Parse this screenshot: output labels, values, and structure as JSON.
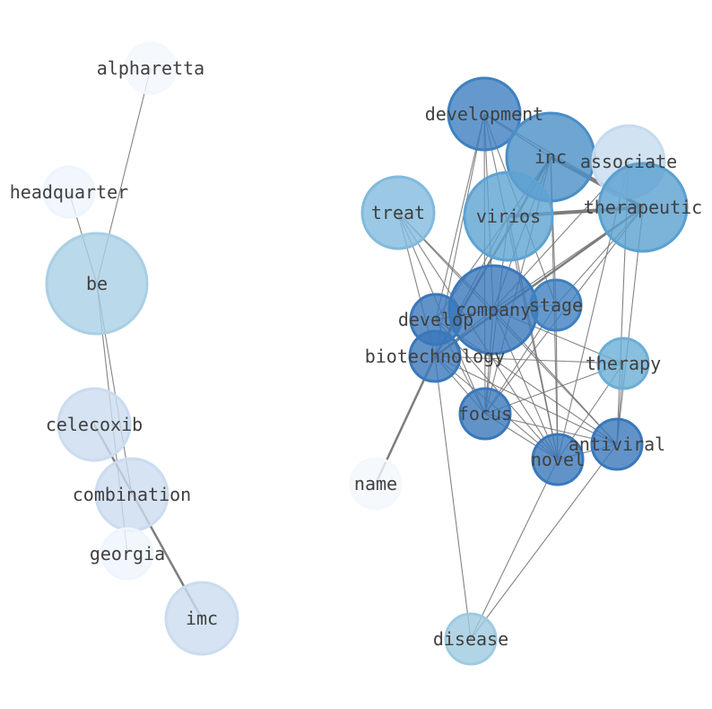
{
  "nodes": [
    {
      "id": "alpharetta",
      "color": "#f3f8fe"
    },
    {
      "id": "headquarter",
      "color": "#eef5fc"
    },
    {
      "id": "be",
      "color": "#a9cfe5"
    },
    {
      "id": "celecoxib",
      "color": "#cadcef"
    },
    {
      "id": "combination",
      "color": "#cadcef"
    },
    {
      "id": "georgia",
      "color": "#eef5fc"
    },
    {
      "id": "imc",
      "color": "#cadcef"
    },
    {
      "id": "development",
      "color": "#3f80c0"
    },
    {
      "id": "inc",
      "color": "#4a8ec6"
    },
    {
      "id": "associate",
      "color": "#c6dbef"
    },
    {
      "id": "therapeutic",
      "color": "#5aa0d0"
    },
    {
      "id": "treat",
      "color": "#82badd"
    },
    {
      "id": "virios",
      "color": "#5ea3d2"
    },
    {
      "id": "company",
      "color": "#3a78bb"
    },
    {
      "id": "stage",
      "color": "#3f80c0"
    },
    {
      "id": "develop",
      "color": "#3a78bb"
    },
    {
      "id": "biotechnology",
      "color": "#3a78bb"
    },
    {
      "id": "therapy",
      "color": "#6aaed6"
    },
    {
      "id": "focus",
      "color": "#3a78bb"
    },
    {
      "id": "antiviral",
      "color": "#3a78bb"
    },
    {
      "id": "novel",
      "color": "#3a78bb"
    },
    {
      "id": "name",
      "color": "#f3f8fe"
    },
    {
      "id": "disease",
      "color": "#9ecae1"
    }
  ],
  "edges": [
    [
      "alpharetta",
      "be",
      1
    ],
    [
      "headquarter",
      "be",
      1
    ],
    [
      "be",
      "georgia",
      1
    ],
    [
      "celecoxib",
      "imc",
      2
    ],
    [
      "be",
      "combination",
      1
    ],
    [
      "virios",
      "therapeutic",
      3
    ],
    [
      "inc",
      "therapeutic",
      3
    ],
    [
      "development",
      "inc",
      1
    ],
    [
      "development",
      "therapeutic",
      1
    ],
    [
      "inc",
      "biotechnology",
      2
    ],
    [
      "biotechnology",
      "name",
      2
    ],
    [
      "biotechnology",
      "therapeutic",
      2
    ],
    [
      "development",
      "develop",
      1
    ],
    [
      "development",
      "biotechnology",
      1
    ],
    [
      "development",
      "focus",
      1
    ],
    [
      "development",
      "stage",
      1
    ],
    [
      "development",
      "company",
      1
    ],
    [
      "development",
      "novel",
      1
    ],
    [
      "inc",
      "company",
      1
    ],
    [
      "inc",
      "focus",
      1
    ],
    [
      "inc",
      "novel",
      1
    ],
    [
      "inc",
      "develop",
      1
    ],
    [
      "inc",
      "stage",
      1
    ],
    [
      "treat",
      "company",
      1
    ],
    [
      "treat",
      "focus",
      1
    ],
    [
      "treat",
      "novel",
      1
    ],
    [
      "treat",
      "antiviral",
      1
    ],
    [
      "treat",
      "biotechnology",
      1
    ],
    [
      "associate",
      "antiviral",
      1
    ],
    [
      "associate",
      "novel",
      1
    ],
    [
      "associate",
      "company",
      1
    ],
    [
      "therapeutic",
      "stage",
      1
    ],
    [
      "therapeutic",
      "focus",
      1
    ],
    [
      "therapeutic",
      "antiviral",
      1
    ],
    [
      "therapeutic",
      "company",
      1
    ],
    [
      "company",
      "therapy",
      1
    ],
    [
      "company",
      "antiviral",
      1
    ],
    [
      "company",
      "novel",
      1
    ],
    [
      "company",
      "focus",
      1
    ],
    [
      "company",
      "develop",
      1
    ],
    [
      "company",
      "biotechnology",
      1
    ],
    [
      "company",
      "stage",
      1
    ],
    [
      "virios",
      "novel",
      1
    ],
    [
      "virios",
      "biotechnology",
      1
    ],
    [
      "virios",
      "focus",
      1
    ],
    [
      "biotechnology",
      "focus",
      1
    ],
    [
      "biotechnology",
      "novel",
      1
    ],
    [
      "biotechnology",
      "antiviral",
      1
    ],
    [
      "biotechnology",
      "therapy",
      1
    ],
    [
      "biotechnology",
      "disease",
      1
    ],
    [
      "develop",
      "novel",
      1
    ],
    [
      "develop",
      "antiviral",
      1
    ],
    [
      "develop",
      "focus",
      1
    ],
    [
      "stage",
      "focus",
      1
    ],
    [
      "stage",
      "novel",
      1
    ],
    [
      "therapy",
      "focus",
      1
    ],
    [
      "therapy",
      "novel",
      1
    ],
    [
      "therapy",
      "antiviral",
      1
    ],
    [
      "focus",
      "novel",
      1
    ],
    [
      "focus",
      "antiviral",
      1
    ],
    [
      "novel",
      "antiviral",
      1
    ],
    [
      "disease",
      "novel",
      1
    ],
    [
      "disease",
      "antiviral",
      1
    ]
  ]
}
